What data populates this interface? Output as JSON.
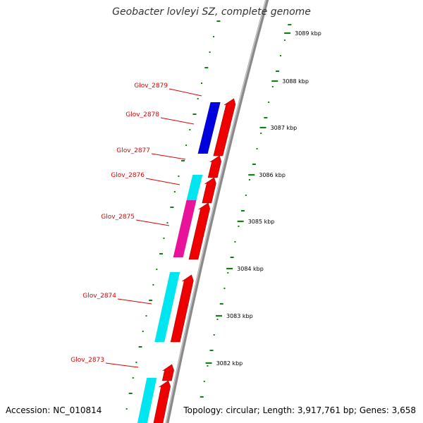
{
  "title": "Geobacter lovleyi SZ, complete genome",
  "footer": {
    "accession": "Accession: NC_010814",
    "summary": "Topology: circular; Length: 3,917,761 bp; Genes: 3,658"
  },
  "colors": {
    "backbone": "#8a8a8a",
    "cds_forward": "#ee0000",
    "gene_blue": "#0000dd",
    "gene_cyan": "#00e6f0",
    "gene_magenta": "#e8139a",
    "dots": "#108010",
    "label": "#dd0000"
  },
  "gene_labels": [
    {
      "name": "Glov_2879",
      "color": "gene_blue"
    },
    {
      "name": "Glov_2878",
      "color": "gene_blue"
    },
    {
      "name": "Glov_2877",
      "color": "gene_cyan"
    },
    {
      "name": "Glov_2876",
      "color": "gene_cyan"
    },
    {
      "name": "Glov_2875",
      "color": "gene_magenta"
    },
    {
      "name": "Glov_2874",
      "color": "gene_cyan"
    },
    {
      "name": "Glov_2873",
      "color": "gene_cyan"
    }
  ],
  "ticks": [
    "3089 kbp",
    "3088 kbp",
    "3087 kbp",
    "3086 kbp",
    "3085 kbp",
    "3084 kbp",
    "3083 kbp",
    "3082 kbp"
  ]
}
